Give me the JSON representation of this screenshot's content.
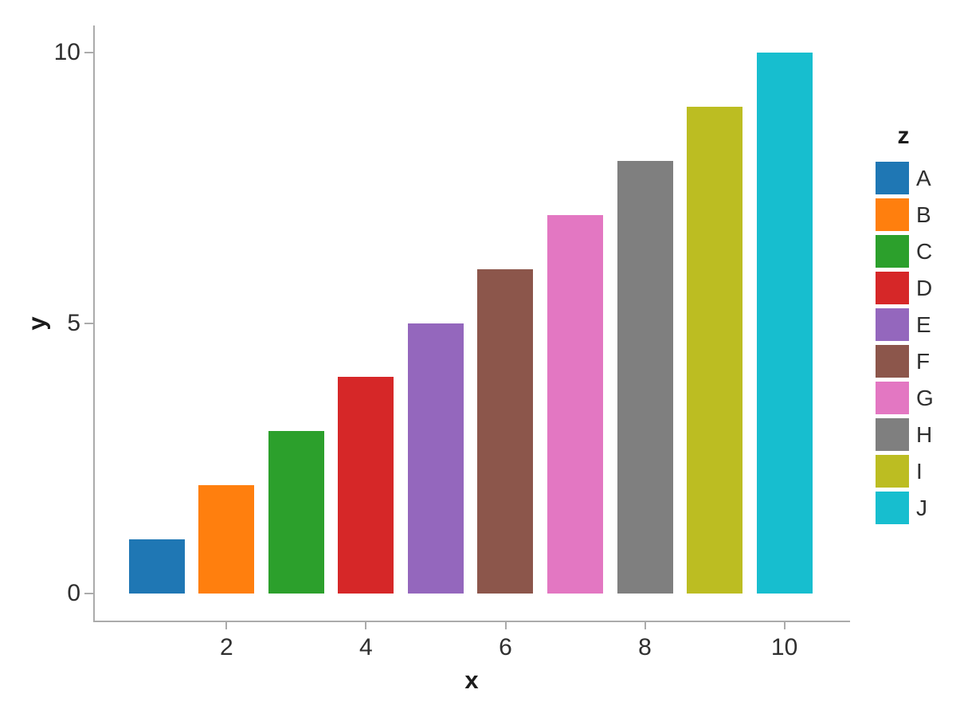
{
  "chart_data": {
    "type": "bar",
    "title": "",
    "xlabel": "x",
    "ylabel": "y",
    "legend_title": "z",
    "legend_position": "right",
    "grid": false,
    "background": "#ffffff",
    "axis_line_color": "#ababab",
    "text_color": "#2f2f2f",
    "x": [
      1,
      2,
      3,
      4,
      5,
      6,
      7,
      8,
      9,
      10
    ],
    "values": [
      1,
      2,
      3,
      4,
      5,
      6,
      7,
      8,
      9,
      10
    ],
    "categories": [
      "A",
      "B",
      "C",
      "D",
      "E",
      "F",
      "G",
      "H",
      "I",
      "J"
    ],
    "colors": [
      "#1f77b4",
      "#ff7f0e",
      "#2ca02c",
      "#d62728",
      "#9467bd",
      "#8c564b",
      "#e377c2",
      "#7f7f7f",
      "#bcbd22",
      "#17becf"
    ],
    "bar_width": 0.8,
    "xlim": [
      0.1,
      10.93
    ],
    "ylim": [
      -0.5,
      10.5
    ],
    "x_ticks": [
      2,
      4,
      6,
      8,
      10
    ],
    "y_ticks": [
      0,
      5,
      10
    ]
  }
}
